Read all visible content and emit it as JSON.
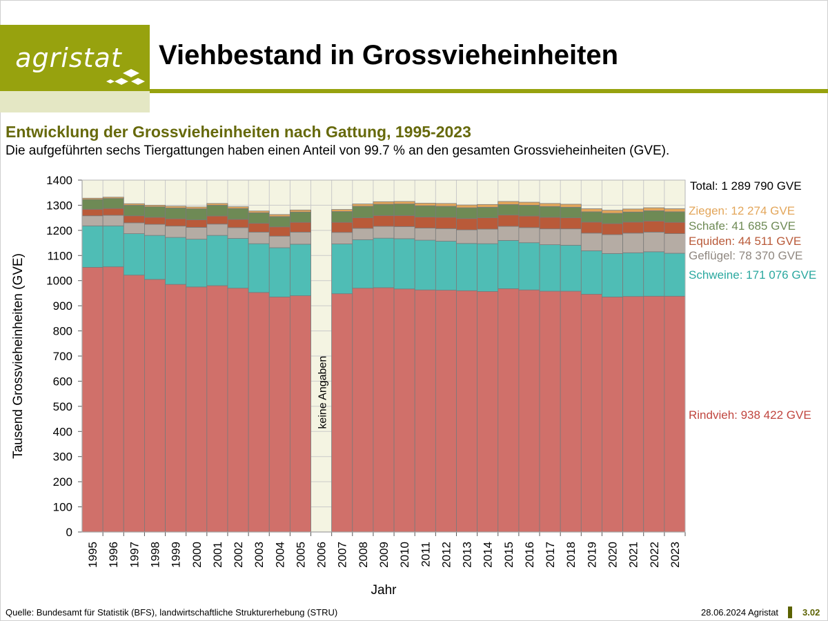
{
  "brand": {
    "logo_text": "agristat",
    "color": "#97a20e"
  },
  "header": {
    "title": "Viehbestand in Grossvieheinheiten"
  },
  "subtitle": "Entwicklung der Grossvieheinheiten nach Gattung, 1995-2023",
  "description": "Die aufgeführten sechs Tiergattungen haben einen Anteil von 99.7 % an den gesamten Grossvieheinheiten (GVE).",
  "footer": {
    "source": "Quelle: Bundesamt für Statistik (BFS), landwirtschaftliche Strukturerhebung (STRU)",
    "date": "28.06.2024 Agristat",
    "page": "3.02"
  },
  "chart_data": {
    "type": "bar",
    "stacked": true,
    "xlabel": "Jahr",
    "ylabel": "Tausend Grossvieheinheiten (GVE)",
    "ylim": [
      0,
      1400
    ],
    "yticks": [
      0,
      100,
      200,
      300,
      400,
      500,
      600,
      700,
      800,
      900,
      1000,
      1100,
      1200,
      1300,
      1400
    ],
    "grid": true,
    "categories": [
      "1995",
      "1996",
      "1997",
      "1998",
      "1999",
      "2000",
      "2001",
      "2002",
      "2003",
      "2004",
      "2005",
      "2006",
      "2007",
      "2008",
      "2009",
      "2010",
      "2011",
      "2012",
      "2013",
      "2014",
      "2015",
      "2016",
      "2017",
      "2018",
      "2019",
      "2020",
      "2021",
      "2022",
      "2023"
    ],
    "gap_annotation": {
      "category": "2006",
      "text": "keine Angaben"
    },
    "total_label": "Total: 1 289 790 GVE",
    "series": [
      {
        "name": "Rindvieh",
        "color": "#d0706a",
        "end_label": "Rindvieh: 938 422 GVE",
        "values": [
          1053,
          1055,
          1022,
          1005,
          985,
          975,
          980,
          970,
          953,
          935,
          940,
          null,
          948,
          970,
          972,
          967,
          963,
          962,
          960,
          957,
          968,
          963,
          958,
          958,
          946,
          935,
          937,
          938,
          938
        ]
      },
      {
        "name": "Schweine",
        "color": "#4fbdb5",
        "end_label": "Schweine: 171 076 GVE",
        "values": [
          165,
          163,
          165,
          175,
          187,
          190,
          200,
          198,
          194,
          196,
          205,
          null,
          198,
          193,
          197,
          200,
          198,
          195,
          188,
          190,
          192,
          188,
          185,
          183,
          173,
          173,
          174,
          177,
          171
        ]
      },
      {
        "name": "Geflügel",
        "color": "#b5aca4",
        "end_label": "Geflügel: 78 370 GVE",
        "values": [
          40,
          42,
          43,
          44,
          45,
          47,
          45,
          43,
          46,
          46,
          48,
          null,
          46,
          45,
          47,
          48,
          48,
          50,
          54,
          58,
          56,
          60,
          63,
          65,
          70,
          75,
          78,
          78,
          78
        ]
      },
      {
        "name": "Equiden",
        "color": "#b95a39",
        "end_label": "Equiden: 44 511 GVE",
        "values": [
          26,
          27,
          28,
          28,
          29,
          30,
          32,
          33,
          35,
          37,
          39,
          null,
          40,
          42,
          43,
          44,
          44,
          45,
          45,
          45,
          45,
          46,
          46,
          44,
          44,
          44,
          44,
          44,
          45
        ]
      },
      {
        "name": "Schafe",
        "color": "#6e8a55",
        "end_label": "Schafe: 41 685 GVE",
        "values": [
          39,
          40,
          42,
          42,
          43,
          44,
          43,
          43,
          42,
          41,
          41,
          null,
          43,
          46,
          45,
          46,
          45,
          44,
          43,
          42,
          42,
          43,
          43,
          42,
          41,
          41,
          40,
          41,
          42
        ]
      },
      {
        "name": "Ziegen",
        "color": "#e3a65a",
        "end_label": "Ziegen: 12 274 GVE",
        "values": [
          5,
          5,
          6,
          6,
          7,
          7,
          7,
          7,
          7,
          8,
          8,
          null,
          8,
          9,
          10,
          10,
          10,
          11,
          11,
          11,
          12,
          12,
          12,
          12,
          12,
          12,
          12,
          12,
          12
        ]
      }
    ]
  }
}
